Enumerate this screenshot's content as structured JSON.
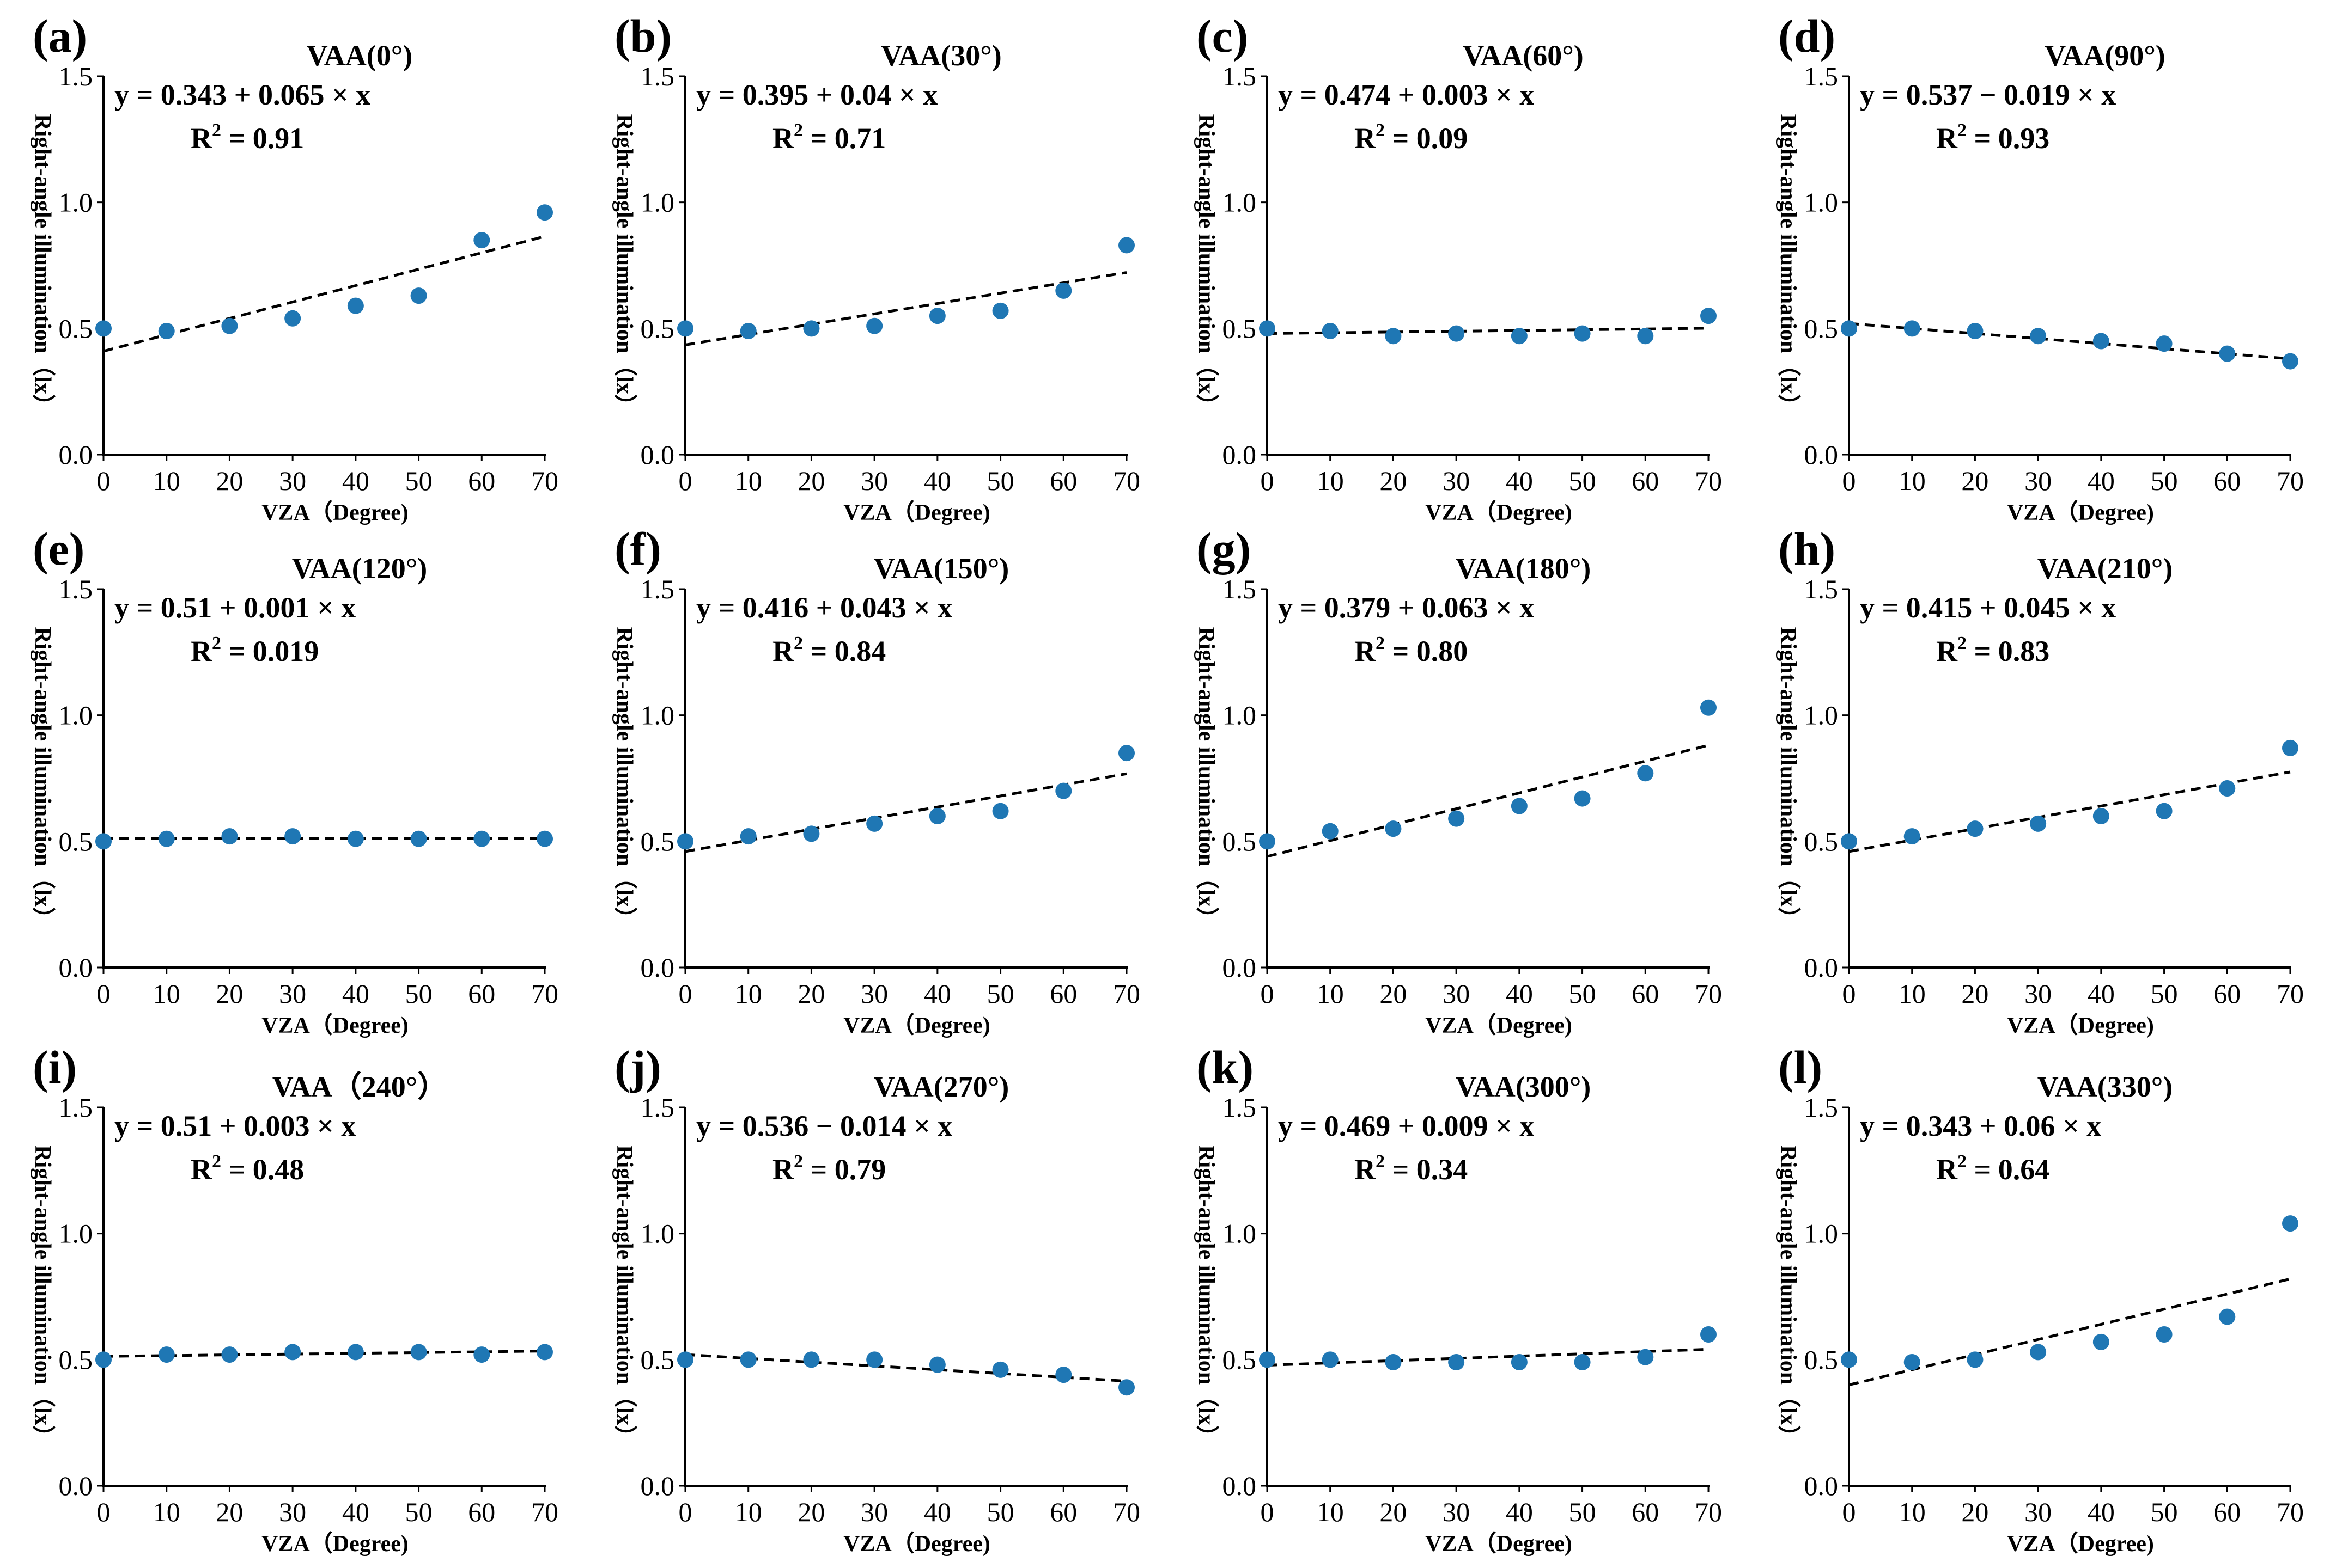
{
  "chart_data": [
    {
      "type": "scatter",
      "panel_label": "(a)",
      "title": "VAA(0°)",
      "equation": "y = 0.343 + 0.065 × x",
      "r2_value": "0.91",
      "x": [
        0,
        10,
        20,
        30,
        40,
        50,
        60,
        70
      ],
      "y": [
        0.5,
        0.49,
        0.51,
        0.54,
        0.59,
        0.63,
        0.85,
        0.96
      ],
      "fit": {
        "intercept": 0.41,
        "slope_per_degree": 0.0065
      },
      "xlabel": "VZA（Degree)",
      "ylabel": "Right-angle illumination（lx）",
      "xlim": [
        0,
        70
      ],
      "ylim": [
        0,
        1.5
      ],
      "xticks": [
        "0",
        "10",
        "20",
        "30",
        "40",
        "50",
        "60",
        "70"
      ],
      "yticks": [
        "0.0",
        "0.5",
        "1.0",
        "1.5"
      ],
      "marker_color": "#1f77b4"
    },
    {
      "type": "scatter",
      "panel_label": "(b)",
      "title": "VAA(30°)",
      "equation": "y = 0.395 + 0.04 × x",
      "r2_value": "0.71",
      "x": [
        0,
        10,
        20,
        30,
        40,
        50,
        60,
        70
      ],
      "y": [
        0.5,
        0.49,
        0.5,
        0.51,
        0.55,
        0.57,
        0.65,
        0.83
      ],
      "fit": {
        "intercept": 0.435,
        "slope_per_degree": 0.0041
      },
      "xlabel": "VZA（Degree)",
      "ylabel": "Right-angle illumination（lx）",
      "xlim": [
        0,
        70
      ],
      "ylim": [
        0,
        1.5
      ],
      "xticks": [
        "0",
        "10",
        "20",
        "30",
        "40",
        "50",
        "60",
        "70"
      ],
      "yticks": [
        "0.0",
        "0.5",
        "1.0",
        "1.5"
      ],
      "marker_color": "#1f77b4"
    },
    {
      "type": "scatter",
      "panel_label": "(c)",
      "title": "VAA(60°)",
      "equation": "y = 0.474 + 0.003 × x",
      "r2_value": "0.09",
      "x": [
        0,
        10,
        20,
        30,
        40,
        50,
        60,
        70
      ],
      "y": [
        0.5,
        0.49,
        0.47,
        0.48,
        0.47,
        0.48,
        0.47,
        0.55
      ],
      "fit": {
        "intercept": 0.48,
        "slope_per_degree": 0.0003
      },
      "xlabel": "VZA（Degree)",
      "ylabel": "Right-angle illumination（lx）",
      "xlim": [
        0,
        70
      ],
      "ylim": [
        0,
        1.5
      ],
      "xticks": [
        "0",
        "10",
        "20",
        "30",
        "40",
        "50",
        "60",
        "70"
      ],
      "yticks": [
        "0.0",
        "0.5",
        "1.0",
        "1.5"
      ],
      "marker_color": "#1f77b4"
    },
    {
      "type": "scatter",
      "panel_label": "(d)",
      "title": "VAA(90°)",
      "equation": "y = 0.537 − 0.019 × x",
      "r2_value": "0.93",
      "x": [
        0,
        10,
        20,
        30,
        40,
        50,
        60,
        70
      ],
      "y": [
        0.5,
        0.5,
        0.49,
        0.47,
        0.45,
        0.44,
        0.4,
        0.37
      ],
      "fit": {
        "intercept": 0.52,
        "slope_per_degree": -0.002
      },
      "xlabel": "VZA（Degree)",
      "ylabel": "Right-angle illumination（lx）",
      "xlim": [
        0,
        70
      ],
      "ylim": [
        0,
        1.5
      ],
      "xticks": [
        "0",
        "10",
        "20",
        "30",
        "40",
        "50",
        "60",
        "70"
      ],
      "yticks": [
        "0.0",
        "0.5",
        "1.0",
        "1.5"
      ],
      "marker_color": "#1f77b4"
    },
    {
      "type": "scatter",
      "panel_label": "(e)",
      "title": "VAA(120°)",
      "equation": "y = 0.51 + 0.001 × x",
      "r2_value": "0.019",
      "x": [
        0,
        10,
        20,
        30,
        40,
        50,
        60,
        70
      ],
      "y": [
        0.5,
        0.51,
        0.52,
        0.52,
        0.51,
        0.51,
        0.51,
        0.51
      ],
      "fit": {
        "intercept": 0.511,
        "slope_per_degree": 0.0
      },
      "xlabel": "VZA（Degree)",
      "ylabel": "Right-angle illumination（lx）",
      "xlim": [
        0,
        70
      ],
      "ylim": [
        0,
        1.5
      ],
      "xticks": [
        "0",
        "10",
        "20",
        "30",
        "40",
        "50",
        "60",
        "70"
      ],
      "yticks": [
        "0.0",
        "0.5",
        "1.0",
        "1.5"
      ],
      "marker_color": "#1f77b4"
    },
    {
      "type": "scatter",
      "panel_label": "(f)",
      "title": "VAA(150°)",
      "equation": "y = 0.416 + 0.043 × x",
      "r2_value": "0.84",
      "x": [
        0,
        10,
        20,
        30,
        40,
        50,
        60,
        70
      ],
      "y": [
        0.5,
        0.52,
        0.53,
        0.57,
        0.6,
        0.62,
        0.7,
        0.85
      ],
      "fit": {
        "intercept": 0.46,
        "slope_per_degree": 0.0044
      },
      "xlabel": "VZA（Degree)",
      "ylabel": "Right-angle illumination（lx）",
      "xlim": [
        0,
        70
      ],
      "ylim": [
        0,
        1.5
      ],
      "xticks": [
        "0",
        "10",
        "20",
        "30",
        "40",
        "50",
        "60",
        "70"
      ],
      "yticks": [
        "0.0",
        "0.5",
        "1.0",
        "1.5"
      ],
      "marker_color": "#1f77b4"
    },
    {
      "type": "scatter",
      "panel_label": "(g)",
      "title": "VAA(180°)",
      "equation": "y = 0.379 + 0.063 × x",
      "r2_value": "0.80",
      "x": [
        0,
        10,
        20,
        30,
        40,
        50,
        60,
        70
      ],
      "y": [
        0.5,
        0.54,
        0.55,
        0.59,
        0.64,
        0.67,
        0.77,
        1.03
      ],
      "fit": {
        "intercept": 0.44,
        "slope_per_degree": 0.0063
      },
      "xlabel": "VZA（Degree)",
      "ylabel": "Right-angle illumination（lx）",
      "xlim": [
        0,
        70
      ],
      "ylim": [
        0,
        1.5
      ],
      "xticks": [
        "0",
        "10",
        "20",
        "30",
        "40",
        "50",
        "60",
        "70"
      ],
      "yticks": [
        "0.0",
        "0.5",
        "1.0",
        "1.5"
      ],
      "marker_color": "#1f77b4"
    },
    {
      "type": "scatter",
      "panel_label": "(h)",
      "title": "VAA(210°)",
      "equation": "y = 0.415 + 0.045 × x",
      "r2_value": "0.83",
      "x": [
        0,
        10,
        20,
        30,
        40,
        50,
        60,
        70
      ],
      "y": [
        0.5,
        0.52,
        0.55,
        0.57,
        0.6,
        0.62,
        0.71,
        0.87
      ],
      "fit": {
        "intercept": 0.46,
        "slope_per_degree": 0.0045
      },
      "xlabel": "VZA（Degree)",
      "ylabel": "Right-angle illumination（lx）",
      "xlim": [
        0,
        70
      ],
      "ylim": [
        0,
        1.5
      ],
      "xticks": [
        "0",
        "10",
        "20",
        "30",
        "40",
        "50",
        "60",
        "70"
      ],
      "yticks": [
        "0.0",
        "0.5",
        "1.0",
        "1.5"
      ],
      "marker_color": "#1f77b4"
    },
    {
      "type": "scatter",
      "panel_label": "(i)",
      "title": "VAA（240°）",
      "equation": "y = 0.51 + 0.003 × x",
      "r2_value": "0.48",
      "x": [
        0,
        10,
        20,
        30,
        40,
        50,
        60,
        70
      ],
      "y": [
        0.5,
        0.52,
        0.52,
        0.53,
        0.53,
        0.53,
        0.52,
        0.53
      ],
      "fit": {
        "intercept": 0.513,
        "slope_per_degree": 0.0003
      },
      "xlabel": "VZA（Degree)",
      "ylabel": "Right-angle illumination（lx）",
      "xlim": [
        0,
        70
      ],
      "ylim": [
        0,
        1.5
      ],
      "xticks": [
        "0",
        "10",
        "20",
        "30",
        "40",
        "50",
        "60",
        "70"
      ],
      "yticks": [
        "0.0",
        "0.5",
        "1.0",
        "1.5"
      ],
      "marker_color": "#1f77b4"
    },
    {
      "type": "scatter",
      "panel_label": "(j)",
      "title": "VAA(270°)",
      "equation": "y = 0.536 − 0.014 × x",
      "r2_value": "0.79",
      "x": [
        0,
        10,
        20,
        30,
        40,
        50,
        60,
        70
      ],
      "y": [
        0.5,
        0.5,
        0.5,
        0.5,
        0.48,
        0.46,
        0.44,
        0.39
      ],
      "fit": {
        "intercept": 0.52,
        "slope_per_degree": -0.0015
      },
      "xlabel": "VZA（Degree)",
      "ylabel": "Right-angle illumination（lx）",
      "xlim": [
        0,
        70
      ],
      "ylim": [
        0,
        1.5
      ],
      "xticks": [
        "0",
        "10",
        "20",
        "30",
        "40",
        "50",
        "60",
        "70"
      ],
      "yticks": [
        "0.0",
        "0.5",
        "1.0",
        "1.5"
      ],
      "marker_color": "#1f77b4"
    },
    {
      "type": "scatter",
      "panel_label": "(k)",
      "title": "VAA(300°)",
      "equation": "y = 0.469 + 0.009 × x",
      "r2_value": "0.34",
      "x": [
        0,
        10,
        20,
        30,
        40,
        50,
        60,
        70
      ],
      "y": [
        0.5,
        0.5,
        0.49,
        0.49,
        0.49,
        0.49,
        0.51,
        0.6
      ],
      "fit": {
        "intercept": 0.478,
        "slope_per_degree": 0.0009
      },
      "xlabel": "VZA（Degree)",
      "ylabel": "Right-angle illumination（lx）",
      "xlim": [
        0,
        70
      ],
      "ylim": [
        0,
        1.5
      ],
      "xticks": [
        "0",
        "10",
        "20",
        "30",
        "40",
        "50",
        "60",
        "70"
      ],
      "yticks": [
        "0.0",
        "0.5",
        "1.0",
        "1.5"
      ],
      "marker_color": "#1f77b4"
    },
    {
      "type": "scatter",
      "panel_label": "(l)",
      "title": "VAA(330°)",
      "equation": "y = 0.343 + 0.06 × x",
      "r2_value": "0.64",
      "x": [
        0,
        10,
        20,
        30,
        40,
        50,
        60,
        70
      ],
      "y": [
        0.5,
        0.49,
        0.5,
        0.53,
        0.57,
        0.6,
        0.67,
        1.04
      ],
      "fit": {
        "intercept": 0.4,
        "slope_per_degree": 0.006
      },
      "xlabel": "VZA（Degree)",
      "ylabel": "Right-angle illumination（lx）",
      "xlim": [
        0,
        70
      ],
      "ylim": [
        0,
        1.5
      ],
      "xticks": [
        "0",
        "10",
        "20",
        "30",
        "40",
        "50",
        "60",
        "70"
      ],
      "yticks": [
        "0.0",
        "0.5",
        "1.0",
        "1.5"
      ],
      "marker_color": "#1f77b4"
    }
  ]
}
